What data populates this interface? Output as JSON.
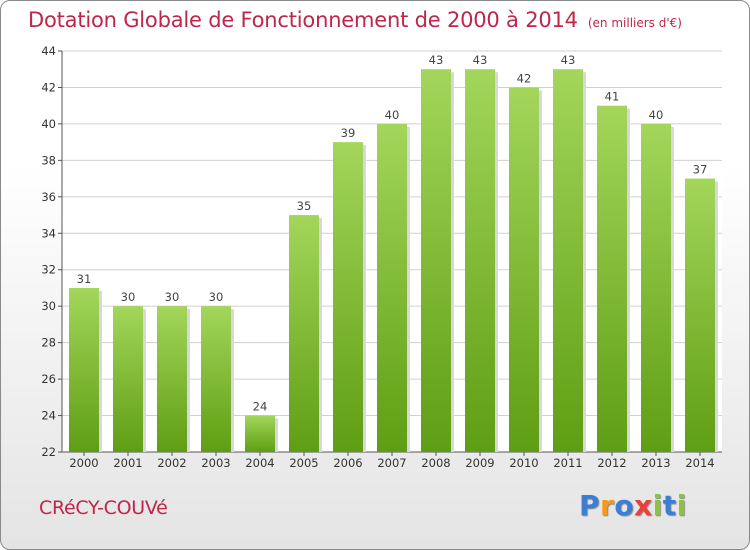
{
  "title": "Dotation Globale de Fonctionnement de 2000 à 2014",
  "subtitle": "(en milliers d'€)",
  "commune": "CRéCY-COUVé",
  "logo": {
    "text": "Proxiti",
    "letters": [
      {
        "char": "P",
        "color": "#3a7fd5"
      },
      {
        "char": "r",
        "color": "#f39a1e"
      },
      {
        "char": "o",
        "color": "#3a7fd5"
      },
      {
        "char": "x",
        "color": "#e8403a"
      },
      {
        "char": "i",
        "color": "#8cc43c"
      },
      {
        "char": "t",
        "color": "#3a7fd5"
      },
      {
        "char": "i",
        "color": "#8cc43c"
      }
    ]
  },
  "colors": {
    "title": "#c0254a",
    "bar_top": "#a3d65a",
    "bar_bottom": "#5e9e14",
    "grid": "#d0d0d0"
  },
  "chart_data": {
    "type": "bar",
    "title": "Dotation Globale de Fonctionnement de 2000 à 2014",
    "subtitle": "(en milliers d'€)",
    "categories": [
      "2000",
      "2001",
      "2002",
      "2003",
      "2004",
      "2005",
      "2006",
      "2007",
      "2008",
      "2009",
      "2010",
      "2011",
      "2012",
      "2013",
      "2014"
    ],
    "values": [
      31,
      30,
      30,
      30,
      24,
      35,
      39,
      40,
      43,
      43,
      42,
      43,
      41,
      40,
      37
    ],
    "ylim": [
      22,
      44
    ],
    "yticks": [
      22,
      24,
      26,
      28,
      30,
      32,
      34,
      36,
      38,
      40,
      42,
      44
    ],
    "grid": true,
    "data_labels": true
  }
}
